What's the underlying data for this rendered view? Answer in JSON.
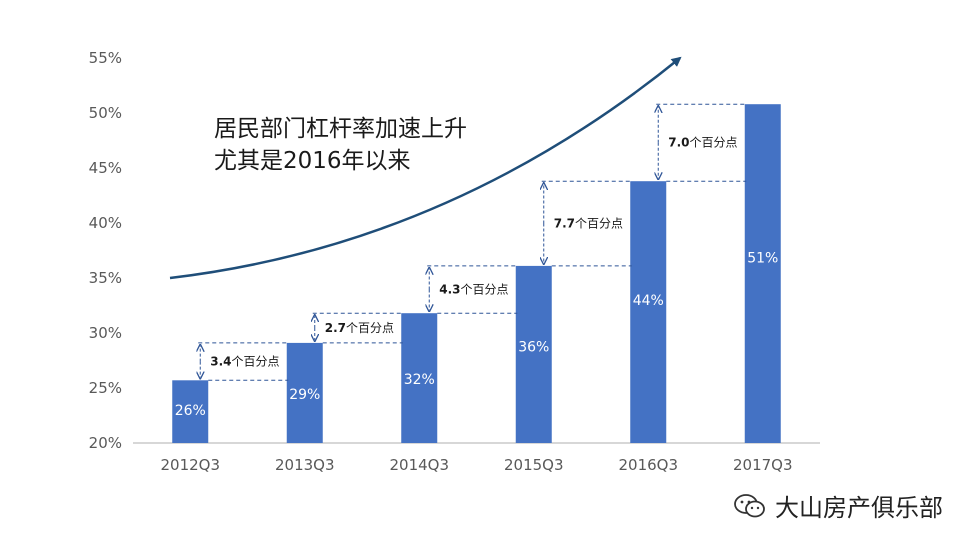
{
  "chart_data": {
    "type": "bar",
    "title_lines": [
      "居民部门杠杆率加速上升",
      "尤其是2016年以来"
    ],
    "categories": [
      "2012Q3",
      "2013Q3",
      "2014Q3",
      "2015Q3",
      "2016Q3",
      "2017Q3"
    ],
    "values": [
      25.7,
      29.1,
      31.8,
      36.1,
      43.8,
      50.8
    ],
    "value_labels": [
      "26%",
      "29%",
      "32%",
      "36%",
      "44%",
      "51%"
    ],
    "ylim": [
      20,
      55
    ],
    "yticks": [
      20,
      25,
      30,
      35,
      40,
      45,
      50,
      55
    ],
    "ytick_labels": [
      "20%",
      "25%",
      "30%",
      "35%",
      "40%",
      "45%",
      "50%",
      "55%"
    ],
    "xlabel": "",
    "ylabel": "",
    "grid": false,
    "bar_color": "#4472C4",
    "annotations": [
      {
        "from_index": 0,
        "to_index": 1,
        "number": "3.4",
        "text": "个百分点"
      },
      {
        "from_index": 1,
        "to_index": 2,
        "number": "2.7",
        "text": "个百分点"
      },
      {
        "from_index": 2,
        "to_index": 3,
        "number": "4.3",
        "text": "个百分点"
      },
      {
        "from_index": 3,
        "to_index": 4,
        "number": "7.7",
        "text": "个百分点"
      },
      {
        "from_index": 4,
        "to_index": 5,
        "number": "7.0",
        "text": "个百分点"
      }
    ],
    "trend_arrow_color": "#1f4e79"
  },
  "watermark": {
    "icon": "wechat-icon",
    "text": "大山房产俱乐部"
  }
}
